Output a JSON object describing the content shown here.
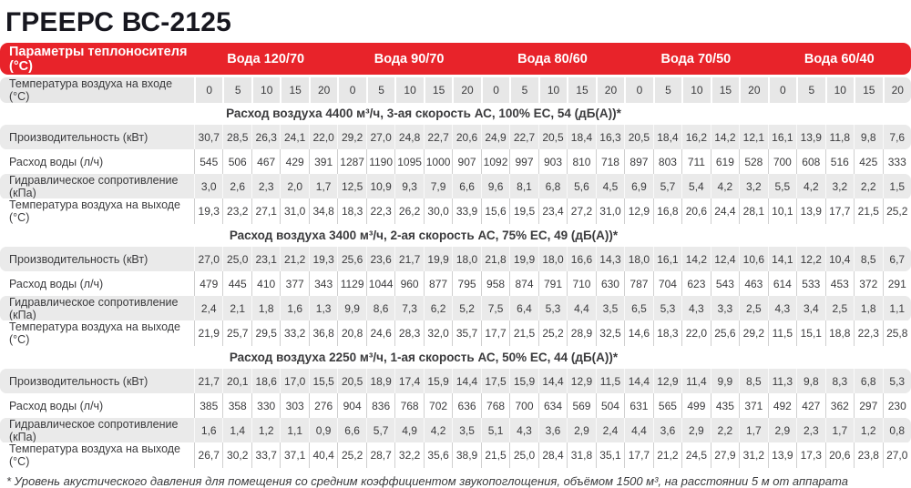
{
  "page_title": "ГРЕЕРС ВС-2125",
  "colors": {
    "accent_red": "#e8232a",
    "row_gray": "#eaeaea",
    "text": "#3b3b3d"
  },
  "table": {
    "header": {
      "label": "Параметры теплоносителя (°С)",
      "groups": [
        "Вода 120/70",
        "Вода 90/70",
        "Вода 80/60",
        "Вода 70/50",
        "Вода 60/40"
      ]
    },
    "inlet_row": {
      "label": "Температура воздуха на входе (°С)",
      "values": [
        "0",
        "5",
        "10",
        "15",
        "20",
        "0",
        "5",
        "10",
        "15",
        "20",
        "0",
        "5",
        "10",
        "15",
        "20",
        "0",
        "5",
        "10",
        "15",
        "20",
        "0",
        "5",
        "10",
        "15",
        "20"
      ]
    },
    "row_labels": [
      "Производительность (кВт)",
      "Расход воды (л/ч)",
      "Гидравлическое сопротивление (кПа)",
      "Температура воздуха на выходе (°С)"
    ],
    "sections": [
      {
        "title": "Расход воздуха 4400 м³/ч, 3-ая скорость АС, 100% ЕС, 54 (дБ(А))*",
        "rows": [
          [
            "30,7",
            "28,5",
            "26,3",
            "24,1",
            "22,0",
            "29,2",
            "27,0",
            "24,8",
            "22,7",
            "20,6",
            "24,9",
            "22,7",
            "20,5",
            "18,4",
            "16,3",
            "20,5",
            "18,4",
            "16,2",
            "14,2",
            "12,1",
            "16,1",
            "13,9",
            "11,8",
            "9,8",
            "7,6"
          ],
          [
            "545",
            "506",
            "467",
            "429",
            "391",
            "1287",
            "1190",
            "1095",
            "1000",
            "907",
            "1092",
            "997",
            "903",
            "810",
            "718",
            "897",
            "803",
            "711",
            "619",
            "528",
            "700",
            "608",
            "516",
            "425",
            "333"
          ],
          [
            "3,0",
            "2,6",
            "2,3",
            "2,0",
            "1,7",
            "12,5",
            "10,9",
            "9,3",
            "7,9",
            "6,6",
            "9,6",
            "8,1",
            "6,8",
            "5,6",
            "4,5",
            "6,9",
            "5,7",
            "5,4",
            "4,2",
            "3,2",
            "5,5",
            "4,2",
            "3,2",
            "2,2",
            "1,5"
          ],
          [
            "19,3",
            "23,2",
            "27,1",
            "31,0",
            "34,8",
            "18,3",
            "22,3",
            "26,2",
            "30,0",
            "33,9",
            "15,6",
            "19,5",
            "23,4",
            "27,2",
            "31,0",
            "12,9",
            "16,8",
            "20,6",
            "24,4",
            "28,1",
            "10,1",
            "13,9",
            "17,7",
            "21,5",
            "25,2"
          ]
        ]
      },
      {
        "title": "Расход воздуха 3400 м³/ч, 2-ая скорость АС, 75% ЕС, 49 (дБ(А))*",
        "rows": [
          [
            "27,0",
            "25,0",
            "23,1",
            "21,2",
            "19,3",
            "25,6",
            "23,6",
            "21,7",
            "19,9",
            "18,0",
            "21,8",
            "19,9",
            "18,0",
            "16,6",
            "14,3",
            "18,0",
            "16,1",
            "14,2",
            "12,4",
            "10,6",
            "14,1",
            "12,2",
            "10,4",
            "8,5",
            "6,7"
          ],
          [
            "479",
            "445",
            "410",
            "377",
            "343",
            "1129",
            "1044",
            "960",
            "877",
            "795",
            "958",
            "874",
            "791",
            "710",
            "630",
            "787",
            "704",
            "623",
            "543",
            "463",
            "614",
            "533",
            "453",
            "372",
            "291"
          ],
          [
            "2,4",
            "2,1",
            "1,8",
            "1,6",
            "1,3",
            "9,9",
            "8,6",
            "7,3",
            "6,2",
            "5,2",
            "7,5",
            "6,4",
            "5,3",
            "4,4",
            "3,5",
            "6,5",
            "5,3",
            "4,3",
            "3,3",
            "2,5",
            "4,3",
            "3,4",
            "2,5",
            "1,8",
            "1,1"
          ],
          [
            "21,9",
            "25,7",
            "29,5",
            "33,2",
            "36,8",
            "20,8",
            "24,6",
            "28,3",
            "32,0",
            "35,7",
            "17,7",
            "21,5",
            "25,2",
            "28,9",
            "32,5",
            "14,6",
            "18,3",
            "22,0",
            "25,6",
            "29,2",
            "11,5",
            "15,1",
            "18,8",
            "22,3",
            "25,8"
          ]
        ]
      },
      {
        "title": "Расход воздуха 2250 м³/ч, 1-ая скорость АС, 50% ЕС, 44 (дБ(А))*",
        "rows": [
          [
            "21,7",
            "20,1",
            "18,6",
            "17,0",
            "15,5",
            "20,5",
            "18,9",
            "17,4",
            "15,9",
            "14,4",
            "17,5",
            "15,9",
            "14,4",
            "12,9",
            "11,5",
            "14,4",
            "12,9",
            "11,4",
            "9,9",
            "8,5",
            "11,3",
            "9,8",
            "8,3",
            "6,8",
            "5,3"
          ],
          [
            "385",
            "358",
            "330",
            "303",
            "276",
            "904",
            "836",
            "768",
            "702",
            "636",
            "768",
            "700",
            "634",
            "569",
            "504",
            "631",
            "565",
            "499",
            "435",
            "371",
            "492",
            "427",
            "362",
            "297",
            "230"
          ],
          [
            "1,6",
            "1,4",
            "1,2",
            "1,1",
            "0,9",
            "6,6",
            "5,7",
            "4,9",
            "4,2",
            "3,5",
            "5,1",
            "4,3",
            "3,6",
            "2,9",
            "2,4",
            "4,4",
            "3,6",
            "2,9",
            "2,2",
            "1,7",
            "2,9",
            "2,3",
            "1,7",
            "1,2",
            "0,8"
          ],
          [
            "26,7",
            "30,2",
            "33,7",
            "37,1",
            "40,4",
            "25,2",
            "28,7",
            "32,2",
            "35,6",
            "38,9",
            "21,5",
            "25,0",
            "28,4",
            "31,8",
            "35,1",
            "17,7",
            "21,2",
            "24,5",
            "27,9",
            "31,2",
            "13,9",
            "17,3",
            "20,6",
            "23,8",
            "27,0"
          ]
        ]
      }
    ],
    "footnote": "* Уровень акустического давления для помещения со средним коэффициентом звукопоглощения, объёмом 1500 м³, на расстоянии 5 м от аппарата"
  }
}
